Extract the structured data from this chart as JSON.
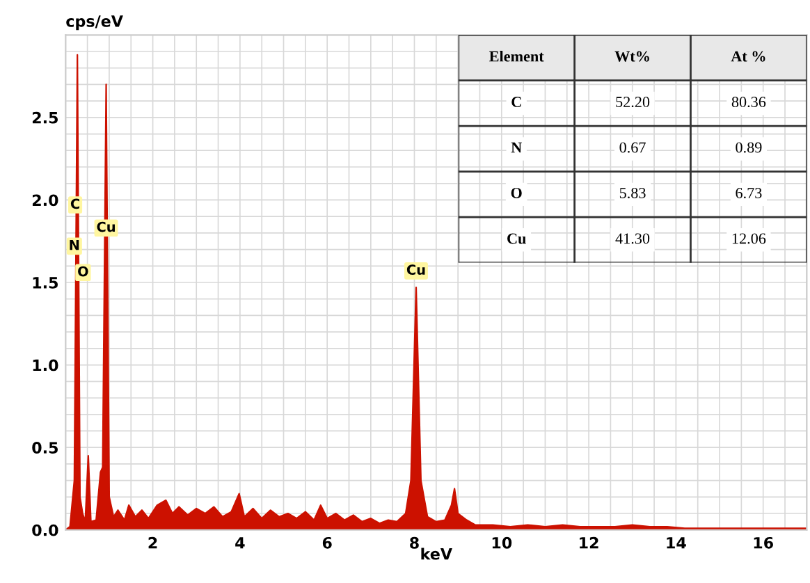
{
  "chart_data": {
    "type": "area",
    "ylabel": "cps/eV",
    "xlabel": "keV",
    "x": [
      0.0,
      0.1,
      0.2,
      0.27,
      0.33,
      0.39,
      0.45,
      0.52,
      0.58,
      0.7,
      0.8,
      0.85,
      0.93,
      1.0,
      1.1,
      1.2,
      1.35,
      1.45,
      1.6,
      1.75,
      1.9,
      2.1,
      2.3,
      2.45,
      2.6,
      2.8,
      3.0,
      3.2,
      3.4,
      3.6,
      3.8,
      3.98,
      4.1,
      4.3,
      4.5,
      4.7,
      4.9,
      5.1,
      5.3,
      5.5,
      5.7,
      5.85,
      6.0,
      6.2,
      6.4,
      6.6,
      6.8,
      7.0,
      7.2,
      7.4,
      7.6,
      7.8,
      7.92,
      8.04,
      8.15,
      8.3,
      8.5,
      8.7,
      8.85,
      8.92,
      9.0,
      9.2,
      9.4,
      9.8,
      10.2,
      10.6,
      11.0,
      11.4,
      11.8,
      12.2,
      12.6,
      13.0,
      13.4,
      13.8,
      14.2,
      14.6,
      15.0,
      15.5,
      16.0,
      16.5,
      17.0
    ],
    "series": [
      {
        "color": "#cc1100",
        "values": [
          0,
          0.02,
          0.3,
          2.88,
          0.2,
          0.1,
          0.05,
          0.45,
          0.05,
          0.06,
          0.35,
          0.38,
          2.7,
          0.2,
          0.08,
          0.12,
          0.06,
          0.15,
          0.08,
          0.12,
          0.07,
          0.15,
          0.18,
          0.1,
          0.14,
          0.09,
          0.13,
          0.1,
          0.14,
          0.08,
          0.11,
          0.22,
          0.08,
          0.13,
          0.07,
          0.12,
          0.08,
          0.1,
          0.07,
          0.11,
          0.06,
          0.15,
          0.07,
          0.1,
          0.06,
          0.09,
          0.05,
          0.07,
          0.04,
          0.06,
          0.05,
          0.1,
          0.3,
          1.47,
          0.3,
          0.08,
          0.05,
          0.06,
          0.15,
          0.25,
          0.1,
          0.06,
          0.03,
          0.03,
          0.02,
          0.03,
          0.02,
          0.03,
          0.02,
          0.02,
          0.02,
          0.03,
          0.02,
          0.02,
          0.01,
          0.01,
          0.01,
          0.01,
          0.01,
          0.01,
          0.01
        ]
      }
    ],
    "xlim": [
      0,
      17
    ],
    "ylim": [
      0,
      3.0
    ],
    "xticks": [
      2,
      4,
      6,
      8,
      10,
      12,
      14,
      16
    ],
    "yticks": [
      {
        "value": 0,
        "label": "0.0"
      },
      {
        "value": 0.5,
        "label": "0.5"
      },
      {
        "value": 1.0,
        "label": "1.0"
      },
      {
        "value": 1.5,
        "label": "1.5"
      },
      {
        "value": 2.0,
        "label": "2.0"
      },
      {
        "value": 2.5,
        "label": "2.5"
      }
    ],
    "grid": true,
    "annotations": [
      {
        "text": "C",
        "x": 0.22,
        "y": 1.97
      },
      {
        "text": "N",
        "x": 0.2,
        "y": 1.72
      },
      {
        "text": "O",
        "x": 0.4,
        "y": 1.56
      },
      {
        "text": "Cu",
        "x": 0.93,
        "y": 1.83
      },
      {
        "text": "Cu",
        "x": 8.04,
        "y": 1.57
      },
      "Element",
      "Wt%",
      "At %",
      "C",
      "52.20",
      "80.36",
      "N",
      "0.67",
      "0.89",
      "O",
      "5.83",
      "6.73",
      "Cu",
      "41.30",
      "12.06"
    ]
  }
}
